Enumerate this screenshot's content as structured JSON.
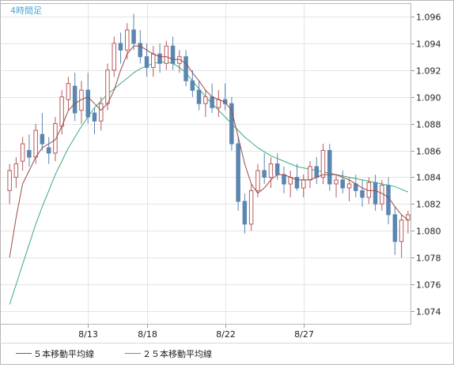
{
  "chart_data": {
    "type": "candlestick",
    "title": "4時間足",
    "x_tick_labels": [
      "8/13",
      "8/18",
      "8/22",
      "8/27"
    ],
    "y_range": [
      1.073,
      1.097
    ],
    "y_ticks": [
      "1.074",
      "1.076",
      "1.078",
      "1.080",
      "1.082",
      "1.084",
      "1.086",
      "1.088",
      "1.090",
      "1.092",
      "1.094",
      "1.096"
    ],
    "grid": true,
    "legend_position": "bottom",
    "colors": {
      "up": "#b85a5a",
      "down": "#5b86b0",
      "ma5": "#9a4a4a",
      "ma25": "#3aaa86",
      "grid": "#e4e4e4",
      "frame": "#b8b8b8",
      "title": "#47a7d6",
      "text": "#222222"
    },
    "series": [
      {
        "name": "５本移動平均線",
        "color": "#9a4a4a"
      },
      {
        "name": "２５本移動平均線",
        "color": "#3aaa86"
      }
    ],
    "candles": [
      [
        1.083,
        1.085,
        1.082,
        1.0845
      ],
      [
        1.084,
        1.0855,
        1.0832,
        1.085
      ],
      [
        1.0852,
        1.087,
        1.0845,
        1.0865
      ],
      [
        1.086,
        1.0872,
        1.0848,
        1.0855
      ],
      [
        1.0855,
        1.088,
        1.085,
        1.0875
      ],
      [
        1.0872,
        1.0888,
        1.086,
        1.0865
      ],
      [
        1.0862,
        1.087,
        1.085,
        1.0858
      ],
      [
        1.0858,
        1.0885,
        1.0852,
        1.088
      ],
      [
        1.0878,
        1.0905,
        1.0872,
        1.09
      ],
      [
        1.0898,
        1.0915,
        1.089,
        1.091
      ],
      [
        1.0908,
        1.0918,
        1.0882,
        1.0888
      ],
      [
        1.089,
        1.0912,
        1.088,
        1.0905
      ],
      [
        1.0905,
        1.0918,
        1.088,
        1.0885
      ],
      [
        1.0888,
        1.0892,
        1.0872,
        1.0882
      ],
      [
        1.0882,
        1.09,
        1.0875,
        1.0895
      ],
      [
        1.0895,
        1.0925,
        1.089,
        1.092
      ],
      [
        1.092,
        1.0945,
        1.0915,
        1.094
      ],
      [
        1.094,
        1.0948,
        1.0925,
        1.0935
      ],
      [
        1.0935,
        1.0955,
        1.0928,
        1.095
      ],
      [
        1.095,
        1.0962,
        1.0935,
        1.094
      ],
      [
        1.094,
        1.095,
        1.0925,
        1.093
      ],
      [
        1.093,
        1.094,
        1.0915,
        1.0922
      ],
      [
        1.0922,
        1.0938,
        1.0915,
        1.0932
      ],
      [
        1.0932,
        1.094,
        1.0918,
        1.0925
      ],
      [
        1.0925,
        1.0942,
        1.092,
        1.0938
      ],
      [
        1.0938,
        1.0945,
        1.092,
        1.0925
      ],
      [
        1.0925,
        1.0935,
        1.0918,
        1.093
      ],
      [
        1.093,
        1.0935,
        1.0908,
        1.0912
      ],
      [
        1.0912,
        1.092,
        1.09,
        1.0905
      ],
      [
        1.0905,
        1.0912,
        1.089,
        1.0895
      ],
      [
        1.0895,
        1.0905,
        1.0885,
        1.09
      ],
      [
        1.09,
        1.091,
        1.0888,
        1.0892
      ],
      [
        1.0892,
        1.0905,
        1.0885,
        1.0898
      ],
      [
        1.0898,
        1.091,
        1.089,
        1.0895
      ],
      [
        1.0895,
        1.09,
        1.086,
        1.0865
      ],
      [
        1.0865,
        1.087,
        1.0815,
        1.0822
      ],
      [
        1.0822,
        1.0828,
        1.0798,
        1.0805
      ],
      [
        1.0805,
        1.0835,
        1.08,
        1.083
      ],
      [
        1.083,
        1.085,
        1.0825,
        1.0845
      ],
      [
        1.0845,
        1.0858,
        1.0835,
        1.084
      ],
      [
        1.084,
        1.0855,
        1.0832,
        1.085
      ],
      [
        1.085,
        1.0858,
        1.0838,
        1.0842
      ],
      [
        1.0842,
        1.0848,
        1.0828,
        1.0835
      ],
      [
        1.0835,
        1.0845,
        1.0825,
        1.084
      ],
      [
        1.084,
        1.085,
        1.083,
        1.0832
      ],
      [
        1.0832,
        1.0842,
        1.0825,
        1.0838
      ],
      [
        1.0838,
        1.0852,
        1.0832,
        1.0848
      ],
      [
        1.0848,
        1.0855,
        1.0835,
        1.084
      ],
      [
        1.084,
        1.0865,
        1.0835,
        1.086
      ],
      [
        1.086,
        1.0865,
        1.083,
        1.0835
      ],
      [
        1.0835,
        1.0842,
        1.0825,
        1.0838
      ],
      [
        1.0838,
        1.0845,
        1.0828,
        1.0832
      ],
      [
        1.0832,
        1.084,
        1.0822,
        1.0835
      ],
      [
        1.0835,
        1.0842,
        1.0825,
        1.083
      ],
      [
        1.083,
        1.0838,
        1.0818,
        1.0825
      ],
      [
        1.0825,
        1.084,
        1.082,
        1.0836
      ],
      [
        1.0836,
        1.0842,
        1.0815,
        1.082
      ],
      [
        1.082,
        1.0838,
        1.0815,
        1.0834
      ],
      [
        1.0834,
        1.084,
        1.0805,
        1.0812
      ],
      [
        1.0812,
        1.0818,
        1.0782,
        1.0792
      ],
      [
        1.0792,
        1.0812,
        1.078,
        1.0808
      ],
      [
        1.0808,
        1.0815,
        1.0798,
        1.0812
      ]
    ],
    "ma5": [
      1.078,
      1.081,
      1.0835,
      1.0845,
      1.0855,
      1.0862,
      1.0865,
      1.0868,
      1.0878,
      1.089,
      1.0895,
      1.0898,
      1.09,
      1.0895,
      1.089,
      1.0895,
      1.0905,
      1.092,
      1.0932,
      1.0938,
      1.0938,
      1.0935,
      1.0932,
      1.093,
      1.093,
      1.0928,
      1.0928,
      1.0925,
      1.0918,
      1.0912,
      1.0905,
      1.09,
      1.0898,
      1.0896,
      1.089,
      1.087,
      1.085,
      1.0835,
      1.0828,
      1.0832,
      1.0838,
      1.0842,
      1.0842,
      1.084,
      1.0838,
      1.0838,
      1.0838,
      1.084,
      1.0842,
      1.0842,
      1.0842,
      1.084,
      1.0838,
      1.0835,
      1.0832,
      1.083,
      1.083,
      1.0828,
      1.0825,
      1.0818,
      1.0812,
      1.0808
    ],
    "ma25": [
      1.0745,
      1.076,
      1.0775,
      1.079,
      1.0805,
      1.0818,
      1.083,
      1.0842,
      1.0852,
      1.0862,
      1.087,
      1.0878,
      1.0885,
      1.0892,
      1.0897,
      1.0902,
      1.0906,
      1.091,
      1.0914,
      1.0918,
      1.0921,
      1.0923,
      1.0925,
      1.0926,
      1.0926,
      1.0925,
      1.0922,
      1.0918,
      1.0912,
      1.0906,
      1.09,
      1.0895,
      1.089,
      1.0885,
      1.088,
      1.0875,
      1.087,
      1.0866,
      1.0862,
      1.0859,
      1.0856,
      1.0854,
      1.0852,
      1.085,
      1.0848,
      1.0847,
      1.0846,
      1.0845,
      1.0844,
      1.0843,
      1.0842,
      1.0841,
      1.084,
      1.0839,
      1.0838,
      1.0837,
      1.0836,
      1.0835,
      1.0834,
      1.0833,
      1.0831,
      1.0829
    ]
  }
}
